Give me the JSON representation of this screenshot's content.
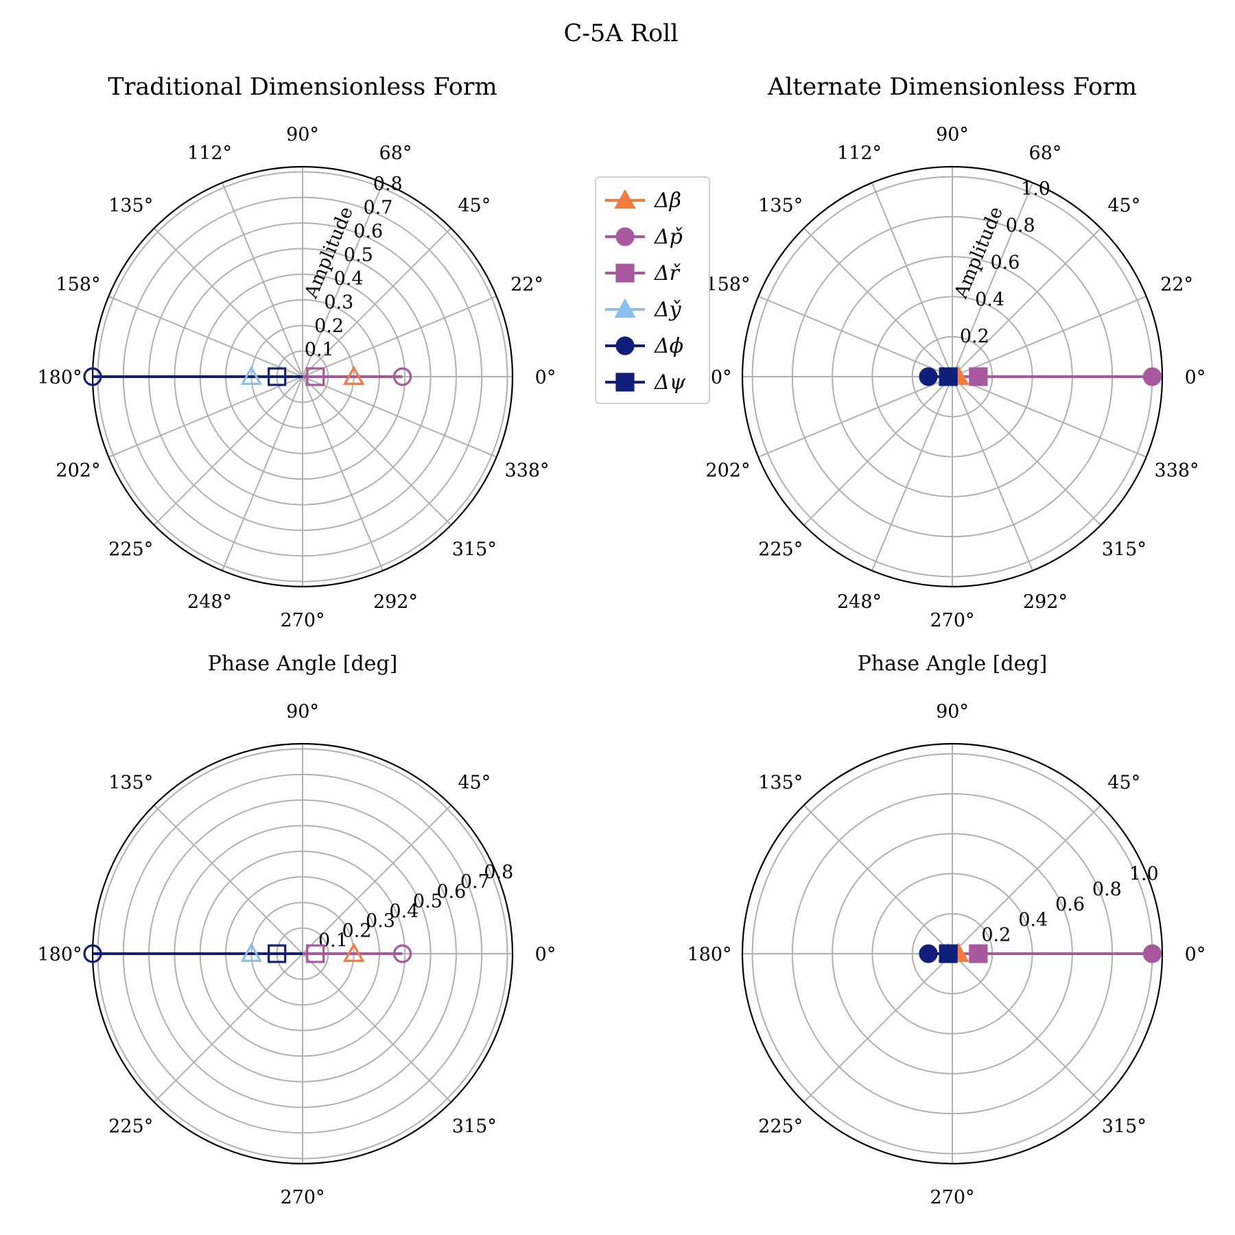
{
  "suptitle": "C-5A Roll",
  "legend": [
    {
      "label": "Δβ",
      "color": "#f47b3d",
      "marker": "triangle"
    },
    {
      "label": "Δp̌",
      "color": "#a8589f",
      "marker": "circle"
    },
    {
      "label": "Δř",
      "color": "#a8589f",
      "marker": "square"
    },
    {
      "label": "Δy̌",
      "color": "#8abff2",
      "marker": "triangle"
    },
    {
      "label": "Δϕ",
      "color": "#0f1f7a",
      "marker": "circle"
    },
    {
      "label": "Δψ",
      "color": "#0f1f7a",
      "marker": "square"
    }
  ],
  "chart_data": [
    {
      "type": "polar",
      "title": "Traditional Dimensionless Form",
      "xlabel": "Phase Angle [deg]",
      "rlabel": "Amplitude",
      "rmax": 0.82,
      "rticks": [
        "0.1",
        "0.2",
        "0.3",
        "0.4",
        "0.5",
        "0.6",
        "0.7",
        "0.8"
      ],
      "rtick_values": [
        0.1,
        0.2,
        0.3,
        0.4,
        0.5,
        0.6,
        0.7,
        0.8
      ],
      "rlabel_angle": 67.5,
      "theta_ticks": [
        "0°",
        "22°",
        "45°",
        "68°",
        "90°",
        "112°",
        "135°",
        "158°",
        "180°",
        "202°",
        "225°",
        "248°",
        "270°",
        "292°",
        "315°",
        "338°"
      ],
      "theta_values": [
        0,
        22.5,
        45,
        67.5,
        90,
        112.5,
        135,
        157.5,
        180,
        202.5,
        225,
        247.5,
        270,
        292.5,
        315,
        337.5
      ],
      "filled": false,
      "series": [
        {
          "name": "Δβ",
          "amplitude": 0.2,
          "phase": 0
        },
        {
          "name": "Δp̌",
          "amplitude": 0.39,
          "phase": 0
        },
        {
          "name": "Δř",
          "amplitude": 0.05,
          "phase": 0
        },
        {
          "name": "Δy̌",
          "amplitude": 0.2,
          "phase": 180
        },
        {
          "name": "Δϕ",
          "amplitude": 0.82,
          "phase": 180
        },
        {
          "name": "Δψ",
          "amplitude": 0.1,
          "phase": 180
        }
      ]
    },
    {
      "type": "polar",
      "title": "Alternate Dimensionless Form",
      "xlabel": "Phase Angle [deg]",
      "rlabel": "Amplitude",
      "rmax": 1.05,
      "rticks": [
        "0.2",
        "0.4",
        "0.6",
        "0.8",
        "1.0"
      ],
      "rtick_values": [
        0.2,
        0.4,
        0.6,
        0.8,
        1.0
      ],
      "rlabel_angle": 67.5,
      "theta_ticks": [
        "0°",
        "22°",
        "45°",
        "68°",
        "90°",
        "112°",
        "135°",
        "158°",
        "180°",
        "202°",
        "225°",
        "248°",
        "270°",
        "292°",
        "315°",
        "338°"
      ],
      "theta_values": [
        0,
        22.5,
        45,
        67.5,
        90,
        112.5,
        135,
        157.5,
        180,
        202.5,
        225,
        247.5,
        270,
        292.5,
        315,
        337.5
      ],
      "filled": true,
      "series": [
        {
          "name": "Δβ",
          "amplitude": 0.03,
          "phase": 0
        },
        {
          "name": "Δp̌",
          "amplitude": 1.0,
          "phase": 0
        },
        {
          "name": "Δř",
          "amplitude": 0.13,
          "phase": 0
        },
        {
          "name": "Δy̌",
          "amplitude": 0.02,
          "phase": 180
        },
        {
          "name": "Δϕ",
          "amplitude": 0.12,
          "phase": 180
        },
        {
          "name": "Δψ",
          "amplitude": 0.02,
          "phase": 180
        }
      ]
    },
    {
      "type": "polar",
      "title": "",
      "xlabel": "",
      "rmax": 0.82,
      "rticks": [
        "0.1",
        "0.2",
        "0.3",
        "0.4",
        "0.5",
        "0.6",
        "0.7",
        "0.8"
      ],
      "rtick_values": [
        0.1,
        0.2,
        0.3,
        0.4,
        0.5,
        0.6,
        0.7,
        0.8
      ],
      "rlabel_angle": 22.5,
      "theta_ticks": [
        "0°",
        "45°",
        "90°",
        "135°",
        "180°",
        "225°",
        "270°",
        "315°"
      ],
      "theta_values": [
        0,
        45,
        90,
        135,
        180,
        225,
        270,
        315
      ],
      "filled": false,
      "series": [
        {
          "name": "Δβ",
          "amplitude": 0.2,
          "phase": 0
        },
        {
          "name": "Δp̌",
          "amplitude": 0.39,
          "phase": 0
        },
        {
          "name": "Δř",
          "amplitude": 0.05,
          "phase": 0
        },
        {
          "name": "Δy̌",
          "amplitude": 0.2,
          "phase": 180
        },
        {
          "name": "Δϕ",
          "amplitude": 0.82,
          "phase": 180
        },
        {
          "name": "Δψ",
          "amplitude": 0.1,
          "phase": 180
        }
      ]
    },
    {
      "type": "polar",
      "title": "",
      "xlabel": "",
      "rmax": 1.05,
      "rticks": [
        "0.2",
        "0.4",
        "0.6",
        "0.8",
        "1.0"
      ],
      "rtick_values": [
        0.2,
        0.4,
        0.6,
        0.8,
        1.0
      ],
      "rlabel_angle": 22.5,
      "theta_ticks": [
        "0°",
        "45°",
        "90°",
        "135°",
        "180°",
        "225°",
        "270°",
        "315°"
      ],
      "theta_values": [
        0,
        45,
        90,
        135,
        180,
        225,
        270,
        315
      ],
      "filled": true,
      "series": [
        {
          "name": "Δβ",
          "amplitude": 0.03,
          "phase": 0
        },
        {
          "name": "Δp̌",
          "amplitude": 1.0,
          "phase": 0
        },
        {
          "name": "Δř",
          "amplitude": 0.13,
          "phase": 0
        },
        {
          "name": "Δy̌",
          "amplitude": 0.02,
          "phase": 180
        },
        {
          "name": "Δϕ",
          "amplitude": 0.12,
          "phase": 180
        },
        {
          "name": "Δψ",
          "amplitude": 0.02,
          "phase": 180
        }
      ]
    }
  ]
}
